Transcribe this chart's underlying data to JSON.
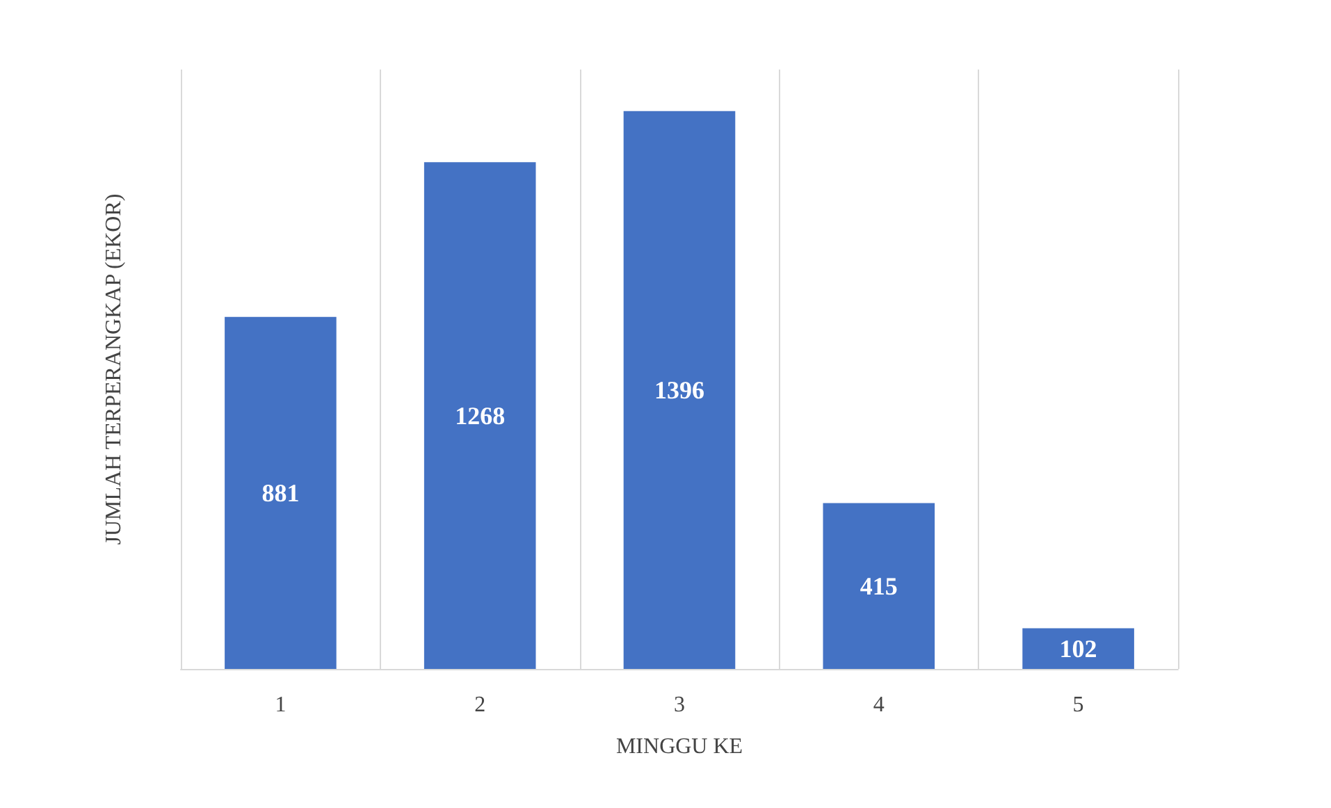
{
  "chart_data": {
    "type": "bar",
    "xlabel": "MINGGU KE",
    "ylabel": "JUMLAH TERPERANGKAP (EKOR)",
    "categories": [
      "1",
      "2",
      "3",
      "4",
      "5"
    ],
    "values": [
      881,
      1268,
      1396,
      415,
      102
    ],
    "color": "#4472c4",
    "data_labels": true,
    "grid": "x"
  }
}
